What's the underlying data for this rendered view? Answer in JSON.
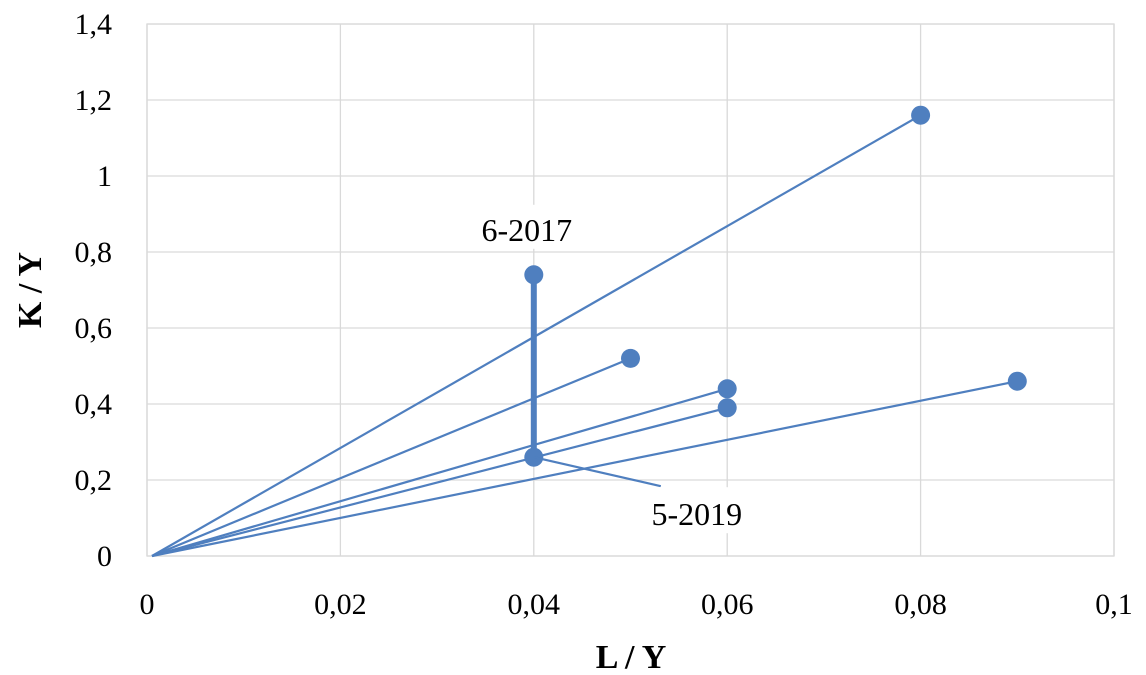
{
  "chart_data": {
    "type": "scatter",
    "title": "",
    "xlabel": "L / Y",
    "ylabel": "K / Y",
    "xlim": [
      0,
      0.1
    ],
    "ylim": [
      0,
      1.4
    ],
    "x_ticks": [
      0,
      0.02,
      0.04,
      0.06,
      0.08,
      0.1
    ],
    "x_tick_labels": [
      "0",
      "0,02",
      "0,04",
      "0,06",
      "0,08",
      "0,1"
    ],
    "y_ticks": [
      0,
      0.2,
      0.4,
      0.6,
      0.8,
      1.0,
      1.2,
      1.4
    ],
    "y_tick_labels": [
      "0",
      "0,2",
      "0,4",
      "0,6",
      "0,8",
      "1",
      "1,2",
      "1,4"
    ],
    "grid": true,
    "legend": "none",
    "color": "#4f7fbf",
    "points": [
      {
        "x": 0.08,
        "y": 1.16
      },
      {
        "x": 0.04,
        "y": 0.74
      },
      {
        "x": 0.05,
        "y": 0.52
      },
      {
        "x": 0.06,
        "y": 0.44
      },
      {
        "x": 0.06,
        "y": 0.39
      },
      {
        "x": 0.09,
        "y": 0.46
      },
      {
        "x": 0.04,
        "y": 0.26
      }
    ],
    "origin_rays_to_points": [
      0,
      2,
      3,
      4,
      5
    ],
    "vertical_segment": {
      "x": 0.04,
      "y_from": 0.26,
      "y_to": 0.74
    },
    "annotations": [
      {
        "text": "6-2017",
        "point": {
          "x": 0.04,
          "y": 0.74
        }
      },
      {
        "text": "5-2019",
        "point": {
          "x": 0.04,
          "y": 0.26
        }
      }
    ]
  }
}
